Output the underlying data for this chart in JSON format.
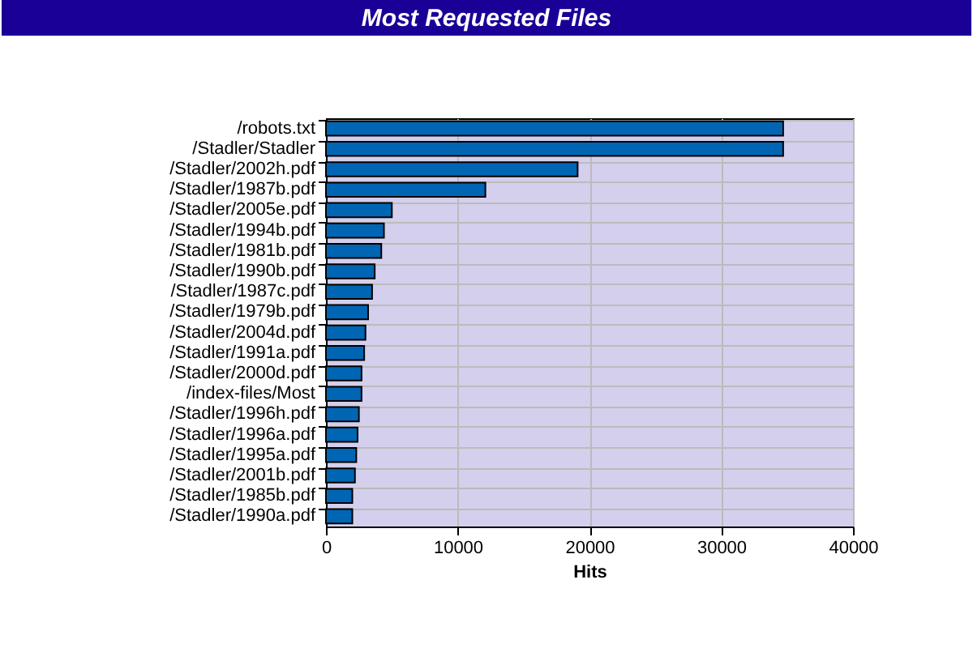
{
  "chart_data": {
    "type": "bar",
    "orientation": "horizontal",
    "title": "Most Requested Files",
    "xlabel": "Hits",
    "categories": [
      "/robots.txt",
      "/Stadler/Stadler",
      "/Stadler/2002h.pdf",
      "/Stadler/1987b.pdf",
      "/Stadler/2005e.pdf",
      "/Stadler/1994b.pdf",
      "/Stadler/1981b.pdf",
      "/Stadler/1990b.pdf",
      "/Stadler/1987c.pdf",
      "/Stadler/1979b.pdf",
      "/Stadler/2004d.pdf",
      "/Stadler/1991a.pdf",
      "/Stadler/2000d.pdf",
      "/index-files/Most",
      "/Stadler/1996h.pdf",
      "/Stadler/1996a.pdf",
      "/Stadler/1995a.pdf",
      "/Stadler/2001b.pdf",
      "/Stadler/1985b.pdf",
      "/Stadler/1990a.pdf"
    ],
    "values": [
      34700,
      34700,
      19100,
      12100,
      5000,
      4400,
      4200,
      3700,
      3500,
      3200,
      3000,
      2900,
      2700,
      2700,
      2500,
      2400,
      2300,
      2200,
      2000,
      2000
    ],
    "color": "#0066b3",
    "xlim": [
      0,
      40000
    ],
    "xticks": [
      0,
      10000,
      20000,
      30000,
      40000
    ],
    "grid": true
  }
}
